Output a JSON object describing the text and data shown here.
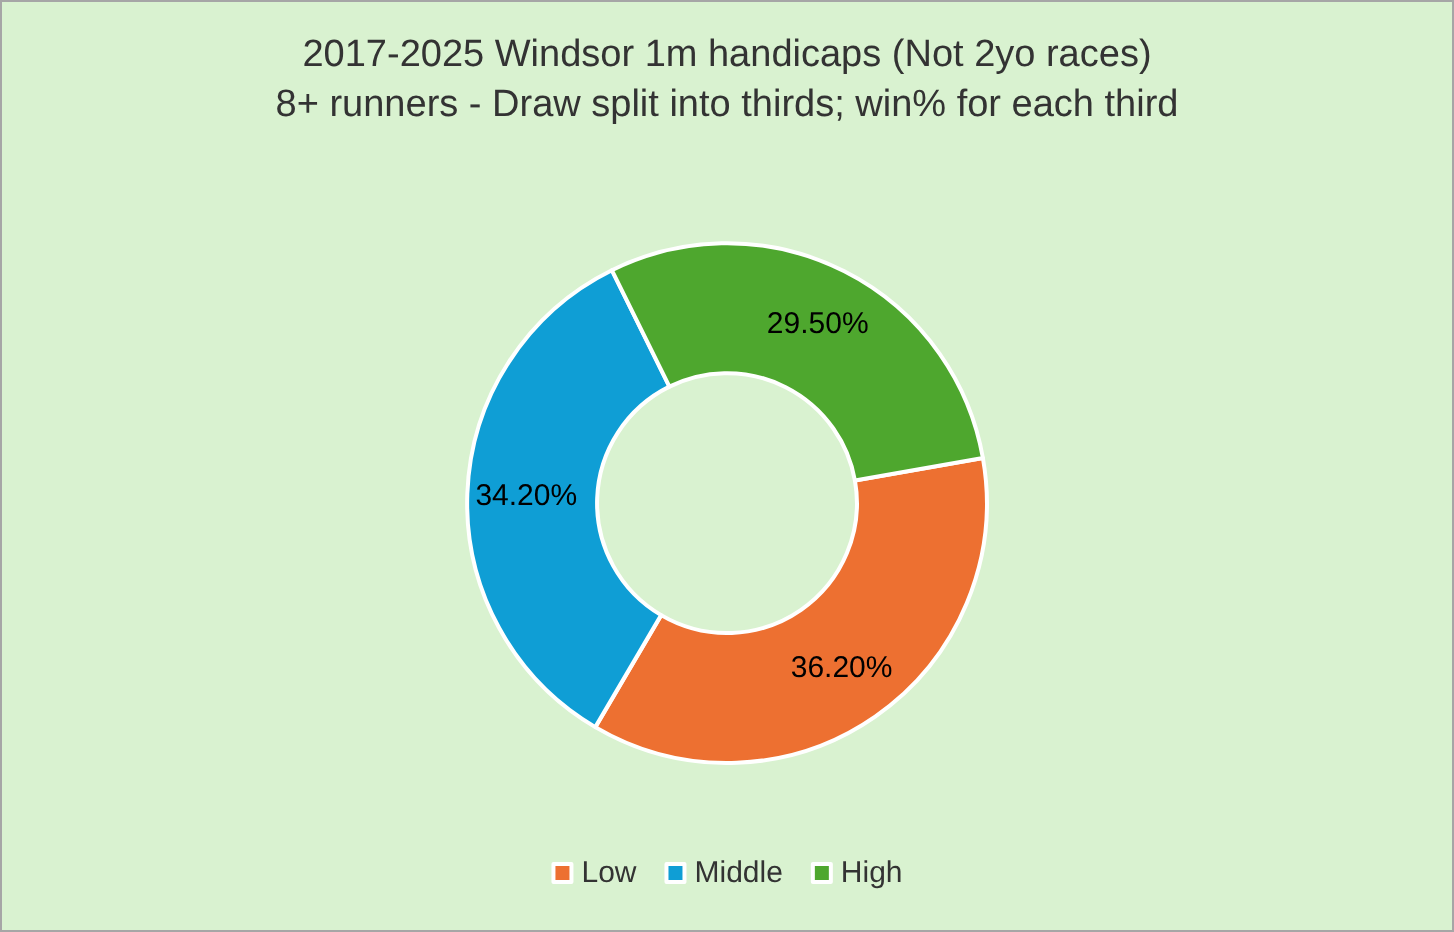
{
  "chart_data": {
    "type": "donut",
    "title": "2017-2025 Windsor 1m handicaps (Not 2yo races)",
    "subtitle": "8+ runners - Draw split into thirds; win% for each third",
    "categories": [
      "Low",
      "Middle",
      "High"
    ],
    "values": [
      36.2,
      34.2,
      29.5
    ],
    "value_labels": [
      "36.20%",
      "34.20%",
      "29.50%"
    ],
    "colors": [
      "#ed7031",
      "#0f9ed5",
      "#4ea72e"
    ],
    "legend": "bottom"
  }
}
